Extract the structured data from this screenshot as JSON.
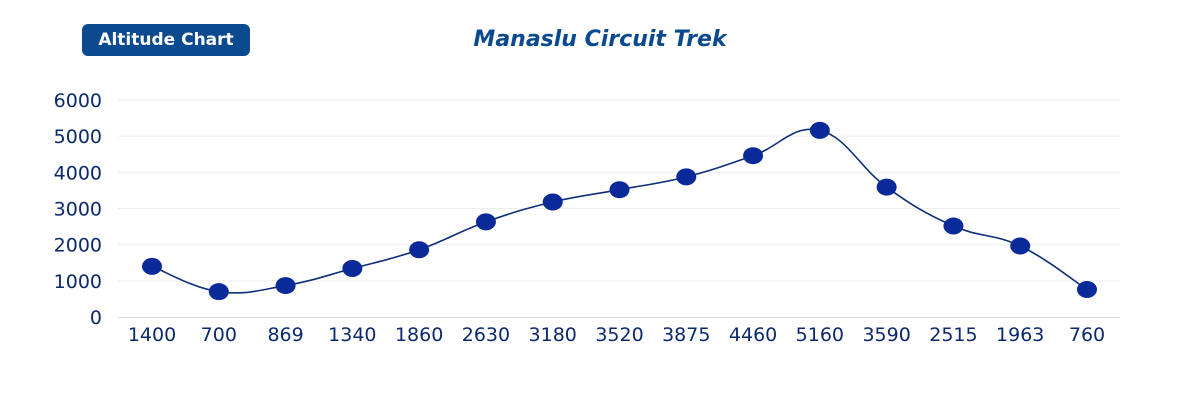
{
  "badge": {
    "label": "Altitude Chart"
  },
  "chart_data": {
    "type": "line",
    "title": "Manaslu Circuit Trek",
    "xlabel": "",
    "ylabel": "",
    "categories": [
      "1400",
      "700",
      "869",
      "1340",
      "1860",
      "2630",
      "3180",
      "3520",
      "3875",
      "4460",
      "5160",
      "3590",
      "2515",
      "1963",
      "760"
    ],
    "series": [
      {
        "values": [
          1400,
          700,
          869,
          1340,
          1860,
          2630,
          3180,
          3520,
          3875,
          4460,
          5160,
          3590,
          2515,
          1963,
          760
        ]
      }
    ],
    "ylim": [
      0,
      6000
    ],
    "yticks": [
      "0",
      "1000",
      "2000",
      "3000",
      "4000",
      "5000",
      "6000"
    ],
    "grid": true,
    "line_style": "smooth",
    "legend": "none"
  },
  "colors": {
    "badge_bg": "#0b4a8f",
    "title": "#0b4a8f",
    "line": "#0c2f78",
    "marker": "#0a2a9a",
    "tick_text": "#0b2a6b",
    "grid": "#eeeeee",
    "axis": "#d8d8d8"
  }
}
